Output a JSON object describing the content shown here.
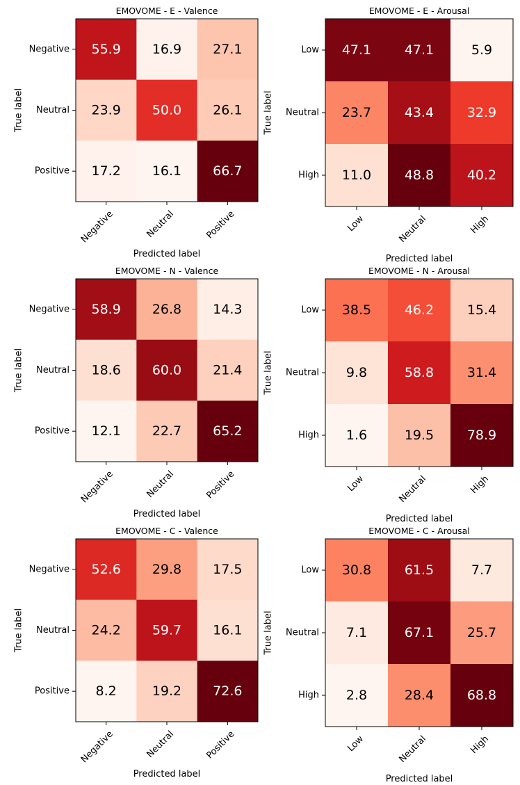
{
  "chart_data": [
    {
      "type": "heatmap",
      "title": "EMOVOME - E - Valence",
      "xlabel": "Predicted label",
      "ylabel": "True label",
      "x_ticks": [
        "Negative",
        "Neutral",
        "Positive"
      ],
      "y_ticks": [
        "Negative",
        "Neutral",
        "Positive"
      ],
      "values": [
        [
          55.9,
          16.9,
          27.1
        ],
        [
          23.9,
          50.0,
          26.1
        ],
        [
          17.2,
          16.1,
          66.7
        ]
      ],
      "colormap": "Reds"
    },
    {
      "type": "heatmap",
      "title": "EMOVOME - E - Arousal",
      "xlabel": "Predicted label",
      "ylabel": "True label",
      "x_ticks": [
        "Low",
        "Neutral",
        "High"
      ],
      "y_ticks": [
        "Low",
        "Neutral",
        "High"
      ],
      "values": [
        [
          47.1,
          47.1,
          5.9
        ],
        [
          23.7,
          43.4,
          32.9
        ],
        [
          11.0,
          48.8,
          40.2
        ]
      ],
      "colormap": "Reds"
    },
    {
      "type": "heatmap",
      "title": "EMOVOME - N - Valence",
      "xlabel": "Predicted label",
      "ylabel": "True label",
      "x_ticks": [
        "Negative",
        "Neutral",
        "Positive"
      ],
      "y_ticks": [
        "Negative",
        "Neutral",
        "Positive"
      ],
      "values": [
        [
          58.9,
          26.8,
          14.3
        ],
        [
          18.6,
          60.0,
          21.4
        ],
        [
          12.1,
          22.7,
          65.2
        ]
      ],
      "colormap": "Reds"
    },
    {
      "type": "heatmap",
      "title": "EMOVOME - N - Arousal",
      "xlabel": "Predicted label",
      "ylabel": "True label",
      "x_ticks": [
        "Low",
        "Neutral",
        "High"
      ],
      "y_ticks": [
        "Low",
        "Neutral",
        "High"
      ],
      "values": [
        [
          38.5,
          46.2,
          15.4
        ],
        [
          9.8,
          58.8,
          31.4
        ],
        [
          1.6,
          19.5,
          78.9
        ]
      ],
      "colormap": "Reds"
    },
    {
      "type": "heatmap",
      "title": "EMOVOME - C - Valence",
      "xlabel": "Predicted label",
      "ylabel": "True label",
      "x_ticks": [
        "Negative",
        "Neutral",
        "Positive"
      ],
      "y_ticks": [
        "Negative",
        "Neutral",
        "Positive"
      ],
      "values": [
        [
          52.6,
          29.8,
          17.5
        ],
        [
          24.2,
          59.7,
          16.1
        ],
        [
          8.2,
          19.2,
          72.6
        ]
      ],
      "colormap": "Reds"
    },
    {
      "type": "heatmap",
      "title": "EMOVOME - C - Arousal",
      "xlabel": "Predicted label",
      "ylabel": "True label",
      "x_ticks": [
        "Low",
        "Neutral",
        "High"
      ],
      "y_ticks": [
        "Low",
        "Neutral",
        "High"
      ],
      "values": [
        [
          30.8,
          61.5,
          7.7
        ],
        [
          7.1,
          67.1,
          25.7
        ],
        [
          2.8,
          28.4,
          68.8
        ]
      ],
      "colormap": "Reds"
    }
  ]
}
